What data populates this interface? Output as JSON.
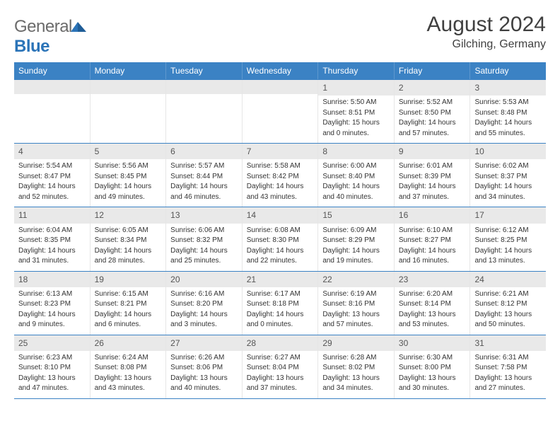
{
  "logo": {
    "text1": "General",
    "text2": "Blue"
  },
  "title": "August 2024",
  "location": "Gilching, Germany",
  "colors": {
    "header_bg": "#3b82c4",
    "header_text": "#ffffff",
    "rule": "#3b82c4",
    "daynum_bg": "#e9e9e9",
    "body_text": "#333333"
  },
  "weekdays": [
    "Sunday",
    "Monday",
    "Tuesday",
    "Wednesday",
    "Thursday",
    "Friday",
    "Saturday"
  ],
  "weeks": [
    [
      null,
      null,
      null,
      null,
      {
        "n": "1",
        "sr": "Sunrise: 5:50 AM",
        "ss": "Sunset: 8:51 PM",
        "d1": "Daylight: 15 hours",
        "d2": "and 0 minutes."
      },
      {
        "n": "2",
        "sr": "Sunrise: 5:52 AM",
        "ss": "Sunset: 8:50 PM",
        "d1": "Daylight: 14 hours",
        "d2": "and 57 minutes."
      },
      {
        "n": "3",
        "sr": "Sunrise: 5:53 AM",
        "ss": "Sunset: 8:48 PM",
        "d1": "Daylight: 14 hours",
        "d2": "and 55 minutes."
      }
    ],
    [
      {
        "n": "4",
        "sr": "Sunrise: 5:54 AM",
        "ss": "Sunset: 8:47 PM",
        "d1": "Daylight: 14 hours",
        "d2": "and 52 minutes."
      },
      {
        "n": "5",
        "sr": "Sunrise: 5:56 AM",
        "ss": "Sunset: 8:45 PM",
        "d1": "Daylight: 14 hours",
        "d2": "and 49 minutes."
      },
      {
        "n": "6",
        "sr": "Sunrise: 5:57 AM",
        "ss": "Sunset: 8:44 PM",
        "d1": "Daylight: 14 hours",
        "d2": "and 46 minutes."
      },
      {
        "n": "7",
        "sr": "Sunrise: 5:58 AM",
        "ss": "Sunset: 8:42 PM",
        "d1": "Daylight: 14 hours",
        "d2": "and 43 minutes."
      },
      {
        "n": "8",
        "sr": "Sunrise: 6:00 AM",
        "ss": "Sunset: 8:40 PM",
        "d1": "Daylight: 14 hours",
        "d2": "and 40 minutes."
      },
      {
        "n": "9",
        "sr": "Sunrise: 6:01 AM",
        "ss": "Sunset: 8:39 PM",
        "d1": "Daylight: 14 hours",
        "d2": "and 37 minutes."
      },
      {
        "n": "10",
        "sr": "Sunrise: 6:02 AM",
        "ss": "Sunset: 8:37 PM",
        "d1": "Daylight: 14 hours",
        "d2": "and 34 minutes."
      }
    ],
    [
      {
        "n": "11",
        "sr": "Sunrise: 6:04 AM",
        "ss": "Sunset: 8:35 PM",
        "d1": "Daylight: 14 hours",
        "d2": "and 31 minutes."
      },
      {
        "n": "12",
        "sr": "Sunrise: 6:05 AM",
        "ss": "Sunset: 8:34 PM",
        "d1": "Daylight: 14 hours",
        "d2": "and 28 minutes."
      },
      {
        "n": "13",
        "sr": "Sunrise: 6:06 AM",
        "ss": "Sunset: 8:32 PM",
        "d1": "Daylight: 14 hours",
        "d2": "and 25 minutes."
      },
      {
        "n": "14",
        "sr": "Sunrise: 6:08 AM",
        "ss": "Sunset: 8:30 PM",
        "d1": "Daylight: 14 hours",
        "d2": "and 22 minutes."
      },
      {
        "n": "15",
        "sr": "Sunrise: 6:09 AM",
        "ss": "Sunset: 8:29 PM",
        "d1": "Daylight: 14 hours",
        "d2": "and 19 minutes."
      },
      {
        "n": "16",
        "sr": "Sunrise: 6:10 AM",
        "ss": "Sunset: 8:27 PM",
        "d1": "Daylight: 14 hours",
        "d2": "and 16 minutes."
      },
      {
        "n": "17",
        "sr": "Sunrise: 6:12 AM",
        "ss": "Sunset: 8:25 PM",
        "d1": "Daylight: 14 hours",
        "d2": "and 13 minutes."
      }
    ],
    [
      {
        "n": "18",
        "sr": "Sunrise: 6:13 AM",
        "ss": "Sunset: 8:23 PM",
        "d1": "Daylight: 14 hours",
        "d2": "and 9 minutes."
      },
      {
        "n": "19",
        "sr": "Sunrise: 6:15 AM",
        "ss": "Sunset: 8:21 PM",
        "d1": "Daylight: 14 hours",
        "d2": "and 6 minutes."
      },
      {
        "n": "20",
        "sr": "Sunrise: 6:16 AM",
        "ss": "Sunset: 8:20 PM",
        "d1": "Daylight: 14 hours",
        "d2": "and 3 minutes."
      },
      {
        "n": "21",
        "sr": "Sunrise: 6:17 AM",
        "ss": "Sunset: 8:18 PM",
        "d1": "Daylight: 14 hours",
        "d2": "and 0 minutes."
      },
      {
        "n": "22",
        "sr": "Sunrise: 6:19 AM",
        "ss": "Sunset: 8:16 PM",
        "d1": "Daylight: 13 hours",
        "d2": "and 57 minutes."
      },
      {
        "n": "23",
        "sr": "Sunrise: 6:20 AM",
        "ss": "Sunset: 8:14 PM",
        "d1": "Daylight: 13 hours",
        "d2": "and 53 minutes."
      },
      {
        "n": "24",
        "sr": "Sunrise: 6:21 AM",
        "ss": "Sunset: 8:12 PM",
        "d1": "Daylight: 13 hours",
        "d2": "and 50 minutes."
      }
    ],
    [
      {
        "n": "25",
        "sr": "Sunrise: 6:23 AM",
        "ss": "Sunset: 8:10 PM",
        "d1": "Daylight: 13 hours",
        "d2": "and 47 minutes."
      },
      {
        "n": "26",
        "sr": "Sunrise: 6:24 AM",
        "ss": "Sunset: 8:08 PM",
        "d1": "Daylight: 13 hours",
        "d2": "and 43 minutes."
      },
      {
        "n": "27",
        "sr": "Sunrise: 6:26 AM",
        "ss": "Sunset: 8:06 PM",
        "d1": "Daylight: 13 hours",
        "d2": "and 40 minutes."
      },
      {
        "n": "28",
        "sr": "Sunrise: 6:27 AM",
        "ss": "Sunset: 8:04 PM",
        "d1": "Daylight: 13 hours",
        "d2": "and 37 minutes."
      },
      {
        "n": "29",
        "sr": "Sunrise: 6:28 AM",
        "ss": "Sunset: 8:02 PM",
        "d1": "Daylight: 13 hours",
        "d2": "and 34 minutes."
      },
      {
        "n": "30",
        "sr": "Sunrise: 6:30 AM",
        "ss": "Sunset: 8:00 PM",
        "d1": "Daylight: 13 hours",
        "d2": "and 30 minutes."
      },
      {
        "n": "31",
        "sr": "Sunrise: 6:31 AM",
        "ss": "Sunset: 7:58 PM",
        "d1": "Daylight: 13 hours",
        "d2": "and 27 minutes."
      }
    ]
  ]
}
